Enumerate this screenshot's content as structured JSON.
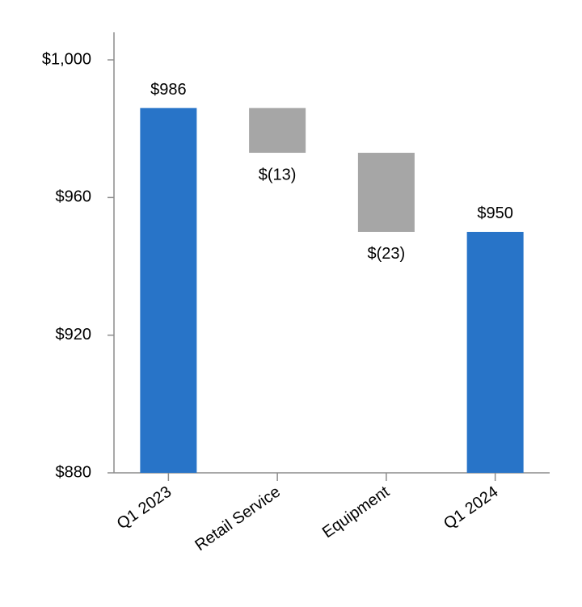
{
  "chart_data": {
    "type": "waterfall",
    "categories": [
      "Q1 2023",
      "Retail Service",
      "Equipment",
      "Q1 2024"
    ],
    "values": [
      986,
      -13,
      -23,
      950
    ],
    "value_labels": [
      "$986",
      "$(13)",
      "$(23)",
      "$950"
    ],
    "measure": [
      "absolute",
      "relative",
      "relative",
      "total"
    ],
    "colors": [
      "#2874c8",
      "#a6a6a6",
      "#a6a6a6",
      "#2874c8"
    ],
    "ylim": [
      880,
      1008
    ],
    "yticks": [
      {
        "value": 880,
        "label": "$880"
      },
      {
        "value": 920,
        "label": "$920"
      },
      {
        "value": 960,
        "label": "$960"
      },
      {
        "value": 1000,
        "label": "$1,000"
      }
    ],
    "grid": false
  }
}
